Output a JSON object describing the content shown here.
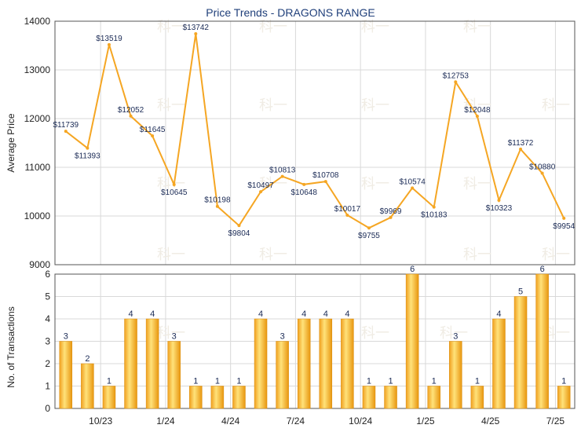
{
  "chart_data": [
    {
      "type": "line",
      "title": "Price Trends - DRAGONS RANGE",
      "ylabel": "Average Price",
      "ylim": [
        9000,
        14000
      ],
      "yticks": [
        9000,
        10000,
        11000,
        12000,
        13000,
        14000
      ],
      "line_color": "#f5a623",
      "series": [
        {
          "values": [
            11739,
            11393,
            13519,
            12052,
            11645,
            10645,
            13742,
            10198,
            9804,
            10497,
            10813,
            10648,
            10708,
            10017,
            9755,
            9969,
            10574,
            10183,
            12753,
            12048,
            10323,
            11372,
            10880,
            9954
          ],
          "labels": [
            "$11739",
            "$11393",
            "$13519",
            "$12052",
            "$11645",
            "$10645",
            "$13742",
            "$10198",
            "$9804",
            "$10497",
            "$10813",
            "$10648",
            "$10708",
            "$10017",
            "$9755",
            "$9969",
            "$10574",
            "$10183",
            "$12753",
            "$12048",
            "$10323",
            "$11372",
            "$10880",
            "$9954"
          ]
        }
      ]
    },
    {
      "type": "bar",
      "ylabel": "No. of Transactions",
      "ylim": [
        0,
        6
      ],
      "yticks": [
        0,
        1,
        2,
        3,
        4,
        5,
        6
      ],
      "bar_color": "#f5a623",
      "xticks": [
        "10/23",
        "1/24",
        "4/24",
        "7/24",
        "10/24",
        "1/25",
        "4/25",
        "7/25"
      ],
      "series": [
        {
          "values": [
            3,
            2,
            1,
            4,
            4,
            3,
            1,
            1,
            1,
            4,
            3,
            4,
            4,
            4,
            1,
            1,
            6,
            1,
            3,
            1,
            4,
            5,
            6,
            1
          ]
        }
      ]
    }
  ]
}
